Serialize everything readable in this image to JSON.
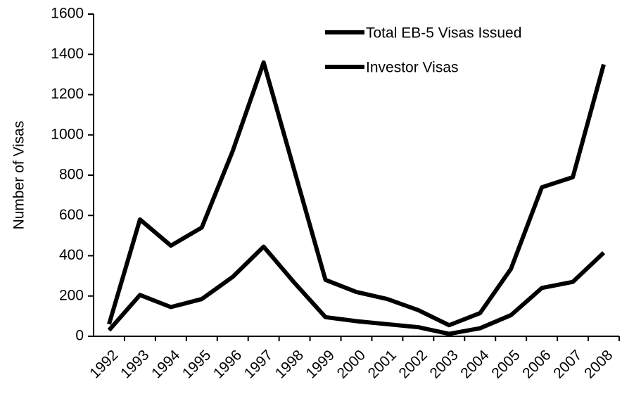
{
  "chart_data": {
    "type": "line",
    "y_label": "Number of Visas",
    "categories": [
      "1992",
      "1993",
      "1994",
      "1995",
      "1996",
      "1997",
      "1998",
      "1999",
      "2000",
      "2001",
      "2002",
      "2003",
      "2004",
      "2005",
      "2006",
      "2007",
      "2008"
    ],
    "series": [
      {
        "name": "Total EB-5 Visas Issued",
        "color": "#000000",
        "values": [
          60,
          580,
          450,
          540,
          920,
          1360,
          820,
          280,
          220,
          185,
          130,
          55,
          115,
          335,
          740,
          790,
          1350
        ]
      },
      {
        "name": "Investor Visas",
        "color": "#000000",
        "values": [
          30,
          205,
          145,
          185,
          295,
          445,
          265,
          95,
          75,
          60,
          45,
          12,
          40,
          105,
          240,
          270,
          415
        ]
      }
    ],
    "ylim": [
      0,
      1600
    ],
    "yticks": [
      0,
      200,
      400,
      600,
      800,
      1000,
      1200,
      1400,
      1600
    ],
    "legend": "top-right"
  }
}
